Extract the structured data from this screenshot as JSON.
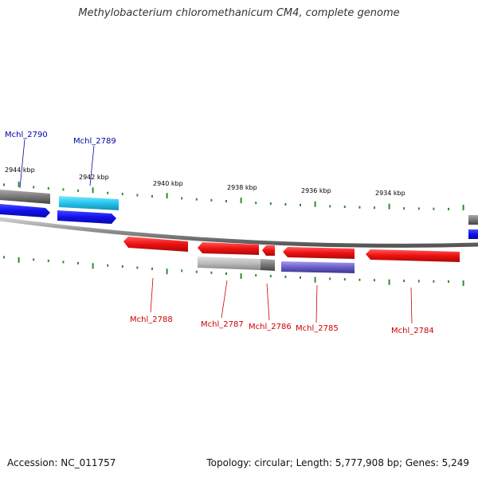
{
  "title": "Methylobacterium chloromethanicum CM4, complete genome",
  "footer": {
    "accession": "Accession: NC_011757",
    "summary": "Topology: circular; Length: 5,777,908 bp; Genes: 5,249"
  },
  "scale_labels": [
    "2944 kbp",
    "2942 kbp",
    "2940 kbp",
    "2938 kbp",
    "2936 kbp",
    "2934 kbp"
  ],
  "gene_labels": {
    "top": [
      "Mchl_2790",
      "Mchl_2789"
    ],
    "bottom": [
      "Mchl_2788",
      "Mchl_2787",
      "Mchl_2786",
      "Mchl_2785",
      "Mchl_2784"
    ]
  },
  "colors": {
    "forward_gene": "#1010ee",
    "forward_gene_alt": "#22c4ee",
    "reverse_gene": "#ee1010",
    "grey_feature": "#777777",
    "light_grey_feature": "#bbbbbb",
    "purple_feature": "#6a5fc8",
    "tick": "#2e8b2e",
    "backbone": "#888888",
    "label_blue": "#0000aa",
    "label_red": "#cc0000"
  }
}
